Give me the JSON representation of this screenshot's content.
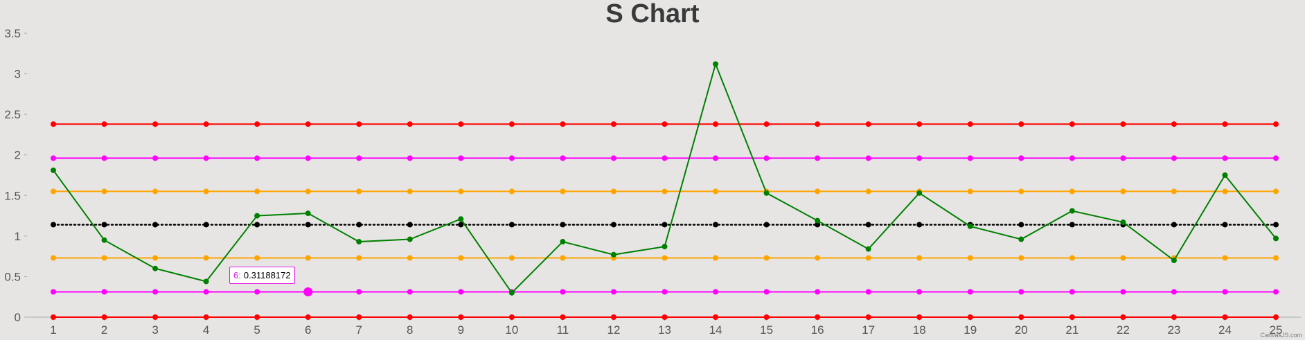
{
  "chart_data": {
    "type": "line",
    "title": "S Chart",
    "xlabel": "",
    "ylabel": "",
    "x": [
      1,
      2,
      3,
      4,
      5,
      6,
      7,
      8,
      9,
      10,
      11,
      12,
      13,
      14,
      15,
      16,
      17,
      18,
      19,
      20,
      21,
      22,
      23,
      24,
      25
    ],
    "ylim": [
      0,
      3.5
    ],
    "yticks": [
      "0",
      "0.5",
      "1",
      "1.5",
      "2",
      "2.5",
      "3",
      "3.5"
    ],
    "grid": false,
    "legend": "none",
    "series": [
      {
        "color": "#ff0000",
        "style": "solid",
        "values": [
          2.38,
          2.38,
          2.38,
          2.38,
          2.38,
          2.38,
          2.38,
          2.38,
          2.38,
          2.38,
          2.38,
          2.38,
          2.38,
          2.38,
          2.38,
          2.38,
          2.38,
          2.38,
          2.38,
          2.38,
          2.38,
          2.38,
          2.38,
          2.38,
          2.38
        ]
      },
      {
        "color": "#ff00ff",
        "style": "solid",
        "values": [
          1.96,
          1.96,
          1.96,
          1.96,
          1.96,
          1.96,
          1.96,
          1.96,
          1.96,
          1.96,
          1.96,
          1.96,
          1.96,
          1.96,
          1.96,
          1.96,
          1.96,
          1.96,
          1.96,
          1.96,
          1.96,
          1.96,
          1.96,
          1.96,
          1.96
        ]
      },
      {
        "color": "#ffa500",
        "style": "solid",
        "values": [
          1.55,
          1.55,
          1.55,
          1.55,
          1.55,
          1.55,
          1.55,
          1.55,
          1.55,
          1.55,
          1.55,
          1.55,
          1.55,
          1.55,
          1.55,
          1.55,
          1.55,
          1.55,
          1.55,
          1.55,
          1.55,
          1.55,
          1.55,
          1.55,
          1.55
        ]
      },
      {
        "color": "#000000",
        "style": "dotted",
        "values": [
          1.14,
          1.14,
          1.14,
          1.14,
          1.14,
          1.14,
          1.14,
          1.14,
          1.14,
          1.14,
          1.14,
          1.14,
          1.14,
          1.14,
          1.14,
          1.14,
          1.14,
          1.14,
          1.14,
          1.14,
          1.14,
          1.14,
          1.14,
          1.14,
          1.14
        ]
      },
      {
        "color": "#ffa500",
        "style": "solid",
        "values": [
          0.73,
          0.73,
          0.73,
          0.73,
          0.73,
          0.73,
          0.73,
          0.73,
          0.73,
          0.73,
          0.73,
          0.73,
          0.73,
          0.73,
          0.73,
          0.73,
          0.73,
          0.73,
          0.73,
          0.73,
          0.73,
          0.73,
          0.73,
          0.73,
          0.73
        ]
      },
      {
        "color": "#ff00ff",
        "style": "solid",
        "values": [
          0.31188172,
          0.31188172,
          0.31188172,
          0.31188172,
          0.31188172,
          0.31188172,
          0.31188172,
          0.31188172,
          0.31188172,
          0.31188172,
          0.31188172,
          0.31188172,
          0.31188172,
          0.31188172,
          0.31188172,
          0.31188172,
          0.31188172,
          0.31188172,
          0.31188172,
          0.31188172,
          0.31188172,
          0.31188172,
          0.31188172,
          0.31188172,
          0.31188172
        ]
      },
      {
        "color": "#ff0000",
        "style": "solid",
        "values": [
          0,
          0,
          0,
          0,
          0,
          0,
          0,
          0,
          0,
          0,
          0,
          0,
          0,
          0,
          0,
          0,
          0,
          0,
          0,
          0,
          0,
          0,
          0,
          0,
          0
        ]
      },
      {
        "color": "#008000",
        "style": "solid",
        "values": [
          1.81,
          0.95,
          0.6,
          0.44,
          1.25,
          1.28,
          0.93,
          0.96,
          1.21,
          0.3,
          0.93,
          0.77,
          0.87,
          3.12,
          1.53,
          1.19,
          0.84,
          1.53,
          1.12,
          0.96,
          1.31,
          1.17,
          0.7,
          1.75,
          0.97
        ]
      }
    ],
    "tooltip": {
      "key": "6:",
      "value": "0.31188172"
    },
    "credit": "CanvasJS.com"
  }
}
